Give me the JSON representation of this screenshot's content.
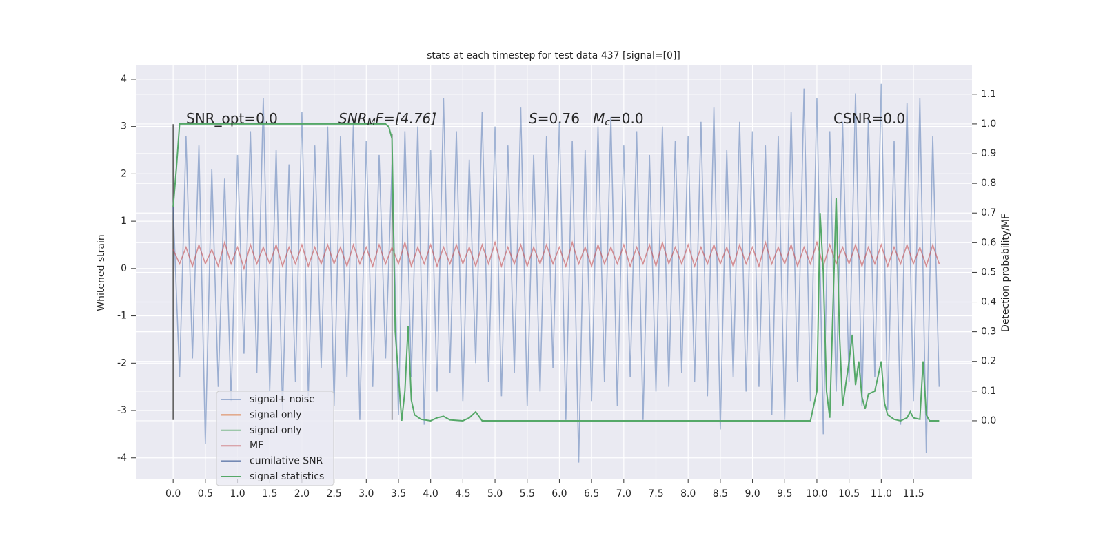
{
  "chart_data": {
    "type": "line",
    "title": "stats at each timestep for test data 437 [signal=[0]]",
    "ylabel": "Whitened strain",
    "y2label": "Detection probability/MF",
    "xlim": [
      -0.58,
      12.41
    ],
    "ylim": [
      -4.44,
      4.29
    ],
    "y2lim": [
      -0.195,
      1.197
    ],
    "xticks": [
      {
        "value": 0,
        "label": "0.0"
      },
      0.5,
      {
        "value": 1,
        "label": "1.0"
      },
      1.5,
      {
        "value": 2,
        "label": "2.0"
      },
      2.5,
      {
        "value": 3,
        "label": "3.0"
      },
      3.5,
      {
        "value": 4,
        "label": "4.0"
      },
      4.5,
      {
        "value": 5,
        "label": "5.0"
      },
      5.5,
      {
        "value": 6,
        "label": "6.0"
      },
      6.5,
      {
        "value": 7,
        "label": "7.0"
      },
      7.5,
      {
        "value": 8,
        "label": "8.0"
      },
      8.5,
      {
        "value": 9,
        "label": "9.0"
      },
      9.5,
      {
        "value": 10,
        "label": "10.0"
      },
      10.5,
      {
        "value": 11,
        "label": "11.0"
      },
      11.5
    ],
    "yticks": [
      -4,
      -3,
      -2,
      -1,
      0,
      1,
      2,
      3,
      4
    ],
    "y2ticks": [
      {
        "value": 0,
        "label": "0.0"
      },
      0.1,
      0.2,
      0.3,
      0.4,
      0.5,
      0.6,
      0.7,
      0.8,
      0.9,
      {
        "value": 1,
        "label": "1.0"
      },
      1.1
    ],
    "grid": true,
    "legend": "lower left",
    "annotations": [
      [
        {
          "text": "SNR_opt=0.0",
          "style": "normal"
        }
      ],
      [
        {
          "text": "SNR",
          "style": "italic"
        },
        {
          "text": "M",
          "style": "sub"
        },
        {
          "text": "F=[4.76]",
          "style": "italic"
        }
      ],
      [
        {
          "text": "S",
          "style": "italic"
        },
        {
          "text": "=0.76   ",
          "style": "normal"
        },
        {
          "text": "M",
          "style": "italic"
        },
        {
          "text": "c",
          "style": "sub"
        },
        {
          "text": "=0.0",
          "style": "normal"
        }
      ],
      [
        {
          "text": "CSNR=0.0",
          "style": "normal"
        }
      ]
    ],
    "vlines": {
      "x": [
        0,
        3.4
      ],
      "ymin": [
        -3.2,
        -3.2
      ],
      "ymax": [
        3.05,
        2.84
      ],
      "color": "#555555"
    },
    "series": [
      {
        "name": "signal+ noise",
        "color": "#4c72b0",
        "opacity": 0.5,
        "axis": "y",
        "x": [
          0,
          0.1,
          0.2,
          0.3,
          0.4,
          0.5,
          0.6,
          0.7,
          0.8,
          0.9,
          1,
          1.1,
          1.2,
          1.3,
          1.4,
          1.5,
          1.6,
          1.7,
          1.8,
          1.9,
          2,
          2.1,
          2.2,
          2.3,
          2.4,
          2.5,
          2.6,
          2.7,
          2.8,
          2.9,
          3,
          3.1,
          3.2,
          3.3,
          3.4,
          3.5,
          3.6,
          3.7,
          3.8,
          3.9,
          4,
          4.1,
          4.2,
          4.3,
          4.4,
          4.5,
          4.6,
          4.7,
          4.8,
          4.9,
          5,
          5.1,
          5.2,
          5.3,
          5.4,
          5.5,
          5.6,
          5.7,
          5.8,
          5.9,
          6,
          6.1,
          6.2,
          6.3,
          6.4,
          6.5,
          6.6,
          6.7,
          6.8,
          6.9,
          7,
          7.1,
          7.2,
          7.3,
          7.4,
          7.5,
          7.6,
          7.7,
          7.8,
          7.9,
          8,
          8.1,
          8.2,
          8.3,
          8.4,
          8.5,
          8.6,
          8.7,
          8.8,
          8.9,
          9,
          9.1,
          9.2,
          9.3,
          9.4,
          9.5,
          9.6,
          9.7,
          9.8,
          9.9,
          10,
          10.1,
          10.2,
          10.3,
          10.4,
          10.5,
          10.6,
          10.7,
          10.8,
          10.9,
          11,
          11.1,
          11.2,
          11.3,
          11.4,
          11.5,
          11.6,
          11.7,
          11.8,
          11.9
        ],
        "values": [
          1.3,
          -2.3,
          2.8,
          -1.9,
          2.6,
          -3.7,
          2.1,
          -2.5,
          1.9,
          -2.8,
          2.4,
          -1.8,
          2.9,
          -2.2,
          3.6,
          -2.6,
          2.5,
          -3.0,
          2.2,
          -2.4,
          3.3,
          -2.7,
          2.6,
          -2.1,
          3.0,
          -2.9,
          2.8,
          -2.3,
          3.1,
          -3.2,
          2.7,
          -2.5,
          2.4,
          -1.9,
          2.2,
          -3.1,
          2.9,
          -2.3,
          3.0,
          -3.3,
          2.5,
          -2.6,
          3.6,
          -2.2,
          2.9,
          -2.8,
          2.3,
          -2.0,
          3.3,
          -2.4,
          3.0,
          -2.7,
          2.6,
          -2.2,
          3.4,
          -2.9,
          2.4,
          -2.6,
          2.8,
          -2.1,
          3.1,
          -3.2,
          2.7,
          -4.1,
          2.5,
          -2.8,
          3.0,
          -2.4,
          3.2,
          -2.9,
          2.6,
          -2.3,
          2.9,
          -3.2,
          2.4,
          -2.6,
          3.0,
          -2.5,
          2.7,
          -2.2,
          2.8,
          -2.4,
          3.1,
          -2.7,
          3.4,
          -3.4,
          2.5,
          -2.3,
          3.1,
          -2.6,
          2.9,
          -2.5,
          2.6,
          -3.1,
          2.8,
          -3.2,
          3.3,
          -2.4,
          3.8,
          -2.8,
          3.6,
          -3.5,
          2.9,
          -2.6,
          3.1,
          -2.4,
          3.7,
          -2.9,
          3.2,
          -2.3,
          3.9,
          -3.0,
          2.7,
          -3.3,
          3.5,
          -2.8,
          3.6,
          -3.9,
          2.8,
          -2.5
        ]
      },
      {
        "name": "signal only",
        "color": "#dd8452",
        "opacity": 1,
        "axis": "y",
        "x": [],
        "values": []
      },
      {
        "name": "signal only",
        "color": "#55a868",
        "opacity": 0.7,
        "axis": "y",
        "x": [],
        "values": []
      },
      {
        "name": "MF",
        "color": "#c44e52",
        "opacity": 0.6,
        "axis": "y",
        "x": [
          0,
          0.1,
          0.2,
          0.3,
          0.4,
          0.5,
          0.6,
          0.7,
          0.8,
          0.9,
          1,
          1.1,
          1.2,
          1.3,
          1.4,
          1.5,
          1.6,
          1.7,
          1.8,
          1.9,
          2,
          2.1,
          2.2,
          2.3,
          2.4,
          2.5,
          2.6,
          2.7,
          2.8,
          2.9,
          3,
          3.1,
          3.2,
          3.3,
          3.4,
          3.5,
          3.6,
          3.7,
          3.8,
          3.9,
          4,
          4.1,
          4.2,
          4.3,
          4.4,
          4.5,
          4.6,
          4.7,
          4.8,
          4.9,
          5,
          5.1,
          5.2,
          5.3,
          5.4,
          5.5,
          5.6,
          5.7,
          5.8,
          5.9,
          6,
          6.1,
          6.2,
          6.3,
          6.4,
          6.5,
          6.6,
          6.7,
          6.8,
          6.9,
          7,
          7.1,
          7.2,
          7.3,
          7.4,
          7.5,
          7.6,
          7.7,
          7.8,
          7.9,
          8,
          8.1,
          8.2,
          8.3,
          8.4,
          8.5,
          8.6,
          8.7,
          8.8,
          8.9,
          9,
          9.1,
          9.2,
          9.3,
          9.4,
          9.5,
          9.6,
          9.7,
          9.8,
          9.9,
          10,
          10.1,
          10.2,
          10.3,
          10.4,
          10.5,
          10.6,
          10.7,
          10.8,
          10.9,
          11,
          11.1,
          11.2,
          11.3,
          11.4,
          11.5,
          11.6,
          11.7,
          11.8,
          11.9
        ],
        "values": [
          0.4,
          0.1,
          0.45,
          0.05,
          0.5,
          0.1,
          0.4,
          0.05,
          0.55,
          0.1,
          0.45,
          0.0,
          0.5,
          0.1,
          0.45,
          0.1,
          0.5,
          0.05,
          0.45,
          0.1,
          0.5,
          0.05,
          0.45,
          0.1,
          0.5,
          0.1,
          0.45,
          0.05,
          0.5,
          0.1,
          0.45,
          0.05,
          0.5,
          0.1,
          0.45,
          0.1,
          0.55,
          0.05,
          0.45,
          0.1,
          0.5,
          0.05,
          0.45,
          0.1,
          0.5,
          0.1,
          0.45,
          0.05,
          0.5,
          0.1,
          0.55,
          0.05,
          0.45,
          0.1,
          0.5,
          0.05,
          0.45,
          0.1,
          0.5,
          0.1,
          0.45,
          0.05,
          0.55,
          0.1,
          0.45,
          0.05,
          0.5,
          0.1,
          0.45,
          0.1,
          0.5,
          0.05,
          0.45,
          0.1,
          0.5,
          0.05,
          0.55,
          0.1,
          0.45,
          0.1,
          0.5,
          0.05,
          0.45,
          0.1,
          0.5,
          0.1,
          0.45,
          0.05,
          0.5,
          0.1,
          0.45,
          0.05,
          0.55,
          0.1,
          0.45,
          0.1,
          0.5,
          0.05,
          0.45,
          0.1,
          0.55,
          0.05,
          0.5,
          0.1,
          0.45,
          0.1,
          0.5,
          0.05,
          0.45,
          0.1,
          0.5,
          0.05,
          0.45,
          0.1,
          0.5,
          0.1,
          0.45,
          0.05,
          0.5,
          0.1
        ]
      },
      {
        "name": "cumilative SNR",
        "color": "#2d4f8e",
        "opacity": 1,
        "axis": "y",
        "x": [],
        "values": []
      },
      {
        "name": "signal statistics",
        "color": "#55a868",
        "opacity": 1,
        "axis": "y2",
        "x": [
          0,
          0.05,
          0.1,
          0.2,
          1,
          2,
          3,
          3.3,
          3.35,
          3.4,
          3.45,
          3.5,
          3.55,
          3.6,
          3.65,
          3.7,
          3.75,
          3.85,
          4,
          4.1,
          4.2,
          4.3,
          4.5,
          4.6,
          4.7,
          4.8,
          5,
          6,
          7,
          8,
          9,
          9.8,
          9.9,
          10,
          10.05,
          10.1,
          10.15,
          10.2,
          10.3,
          10.35,
          10.4,
          10.5,
          10.55,
          10.6,
          10.65,
          10.7,
          10.75,
          10.8,
          10.9,
          11,
          11.05,
          11.1,
          11.2,
          11.3,
          11.4,
          11.45,
          11.5,
          11.6,
          11.65,
          11.7,
          11.75,
          11.9
        ],
        "values": [
          0.72,
          0.85,
          1.0,
          1.0,
          1.0,
          1.0,
          1.0,
          1.0,
          0.99,
          0.95,
          0.3,
          0.15,
          0.0,
          0.1,
          0.32,
          0.07,
          0.02,
          0.005,
          0.0,
          0.01,
          0.015,
          0.003,
          0.0,
          0.01,
          0.03,
          0.0,
          0.0,
          0.0,
          0.0,
          0.0,
          0.0,
          0.0,
          0.0,
          0.1,
          0.7,
          0.5,
          0.1,
          0.01,
          0.75,
          0.3,
          0.05,
          0.2,
          0.29,
          0.12,
          0.2,
          0.08,
          0.04,
          0.09,
          0.1,
          0.2,
          0.06,
          0.02,
          0.005,
          0.0,
          0.01,
          0.03,
          0.01,
          0.005,
          0.2,
          0.02,
          0.0,
          0.0
        ]
      }
    ]
  }
}
